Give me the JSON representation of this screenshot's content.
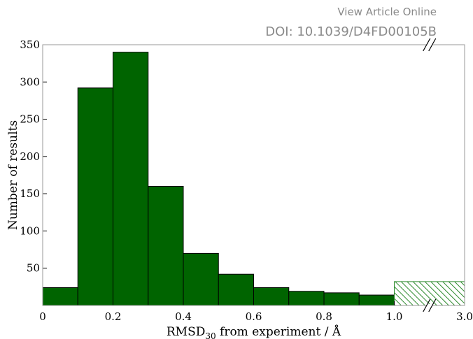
{
  "header": {
    "view_article": "View Article Online",
    "doi": "DOI: 10.1039/D4FD00105B"
  },
  "chart_data": {
    "type": "bar",
    "title": "",
    "xlabel_main": "RMSD",
    "xlabel_sub": "30",
    "xlabel_rest": " from experiment / Å",
    "ylabel": "Number of results",
    "bins": [
      {
        "x0": 0.0,
        "x1": 0.1,
        "value": 24
      },
      {
        "x0": 0.1,
        "x1": 0.2,
        "value": 292
      },
      {
        "x0": 0.2,
        "x1": 0.3,
        "value": 340
      },
      {
        "x0": 0.3,
        "x1": 0.4,
        "value": 160
      },
      {
        "x0": 0.4,
        "x1": 0.5,
        "value": 70
      },
      {
        "x0": 0.5,
        "x1": 0.6,
        "value": 42
      },
      {
        "x0": 0.6,
        "x1": 0.7,
        "value": 24
      },
      {
        "x0": 0.7,
        "x1": 0.8,
        "value": 19
      },
      {
        "x0": 0.8,
        "x1": 0.9,
        "value": 17
      },
      {
        "x0": 0.9,
        "x1": 1.0,
        "value": 14
      }
    ],
    "overflow_bin": {
      "x0": 1.0,
      "x1": 3.0,
      "value": 32,
      "style": "hatched"
    },
    "xticks": [
      "0",
      "0.2",
      "0.4",
      "0.6",
      "0.8",
      "1.0",
      "3.0"
    ],
    "yticks": [
      50,
      100,
      150,
      200,
      250,
      300,
      350
    ],
    "ylim": [
      0,
      350
    ],
    "axis_break": true,
    "bar_color": "#006400",
    "hatch_color": "#2e8b2e",
    "grid": false
  }
}
